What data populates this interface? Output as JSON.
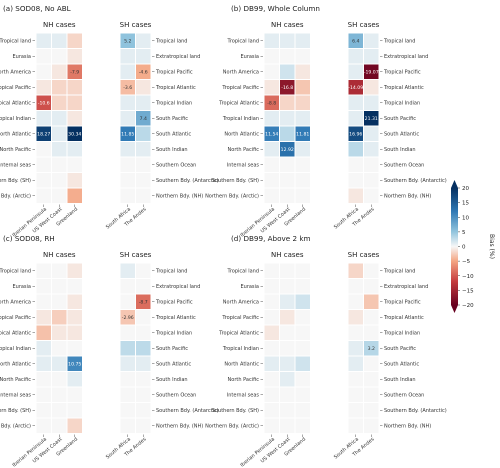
{
  "figure": {
    "colorbar": {
      "label": "Bias (%)",
      "ticks": [
        "20",
        "15",
        "10",
        "5",
        "0",
        "−5",
        "−10",
        "−15",
        "−20"
      ],
      "range": [
        -20,
        20
      ],
      "low_color": "#67001f",
      "mid_color": "#f7f7f7",
      "high_color": "#053061"
    }
  },
  "chart_data": [
    {
      "type": "heatmap",
      "title": "(a) SOD08, No ABL",
      "nh_title": "NH cases",
      "sh_title": "SH cases",
      "rows_left": [
        "Tropical land",
        "Eurasia",
        "North America",
        "Tropical Pacific",
        "Tropical Atlantic",
        "Tropical Indian",
        "North Atlantic",
        "North Pacific",
        "Internal seas",
        "Southern Bdy. (SH)",
        "Northern Bdy. (Arctic)"
      ],
      "rows_right": [
        "Tropical land",
        "Extratropical land",
        "Tropical Pacific",
        "Tropical Atlantic",
        "Tropical Indian",
        "South Pacific",
        "South Atlantic",
        "South Indian",
        "Southern Ocean",
        "Southern Bdy. (Antarctic)",
        "Northern Bdy. (NH)"
      ],
      "nh_cols": [
        "Iberian Peninsula",
        "US West Coast",
        "Greenland"
      ],
      "sh_cols": [
        "South Africa",
        "The Andes"
      ],
      "nh_values": [
        [
          1,
          1,
          -2
        ],
        [
          0,
          0,
          -1
        ],
        [
          0,
          -1,
          -7.9
        ],
        [
          -1,
          -2,
          -2
        ],
        [
          -10.6,
          -2,
          -2
        ],
        [
          1,
          1,
          -1
        ],
        [
          18.27,
          1,
          30.34
        ],
        [
          0,
          1,
          1
        ],
        [
          0,
          0,
          0
        ],
        [
          0,
          0,
          -1
        ],
        [
          0,
          0,
          -4.5
        ]
      ],
      "sh_values": [
        [
          5.2,
          1
        ],
        [
          1,
          1
        ],
        [
          1,
          -4.6
        ],
        [
          -3.6,
          -1
        ],
        [
          1,
          1
        ],
        [
          1,
          7.4
        ],
        [
          11.85,
          3
        ],
        [
          1,
          1
        ],
        [
          0,
          0
        ],
        [
          0,
          0
        ],
        [
          0,
          0
        ]
      ],
      "nh_labels": [
        [
          "",
          "",
          ""
        ],
        [
          "",
          "",
          ""
        ],
        [
          "",
          "",
          "-7.9"
        ],
        [
          "",
          "",
          ""
        ],
        [
          "-10.6",
          "",
          ""
        ],
        [
          "",
          "",
          ""
        ],
        [
          "18.27",
          "",
          "30.34"
        ],
        [
          "",
          "",
          ""
        ],
        [
          "",
          "",
          ""
        ],
        [
          "",
          "",
          ""
        ],
        [
          "",
          "",
          ""
        ]
      ],
      "sh_labels": [
        [
          "5.2",
          ""
        ],
        [
          "",
          ""
        ],
        [
          "",
          "-4.6"
        ],
        [
          "-3.6",
          ""
        ],
        [
          "",
          ""
        ],
        [
          "",
          "7.4"
        ],
        [
          "11.85",
          ""
        ],
        [
          "",
          ""
        ],
        [
          "",
          ""
        ],
        [
          "",
          ""
        ],
        [
          "",
          ""
        ]
      ]
    },
    {
      "type": "heatmap",
      "title": "(b) DB99, Whole Column",
      "nh_title": "NH cases",
      "sh_title": "SH cases",
      "rows_left": [
        "Tropical land",
        "Eurasia",
        "North America",
        "Tropical Pacific",
        "Tropical Atlantic",
        "Tropical Indian",
        "North Atlantic",
        "North Pacific",
        "Internal seas",
        "Southern Bdy. (SH)",
        "Northern Bdy. (Arctic)"
      ],
      "rows_right": [
        "Tropical land",
        "Extratropical land",
        "Tropical Pacific",
        "Tropical Atlantic",
        "Tropical Indian",
        "South Pacific",
        "South Atlantic",
        "South Indian",
        "Southern Ocean",
        "Southern Bdy. (Antarctic)",
        "Northern Bdy. (NH)"
      ],
      "nh_cols": [
        "Iberian Peninsula",
        "US West Coast",
        "Greenland"
      ],
      "sh_cols": [
        "South Africa",
        "The Andes"
      ],
      "nh_values": [
        [
          1,
          1,
          1
        ],
        [
          0,
          0,
          0
        ],
        [
          0,
          2,
          -1
        ],
        [
          -1,
          -16.8,
          -3
        ],
        [
          -8.8,
          -2,
          -2
        ],
        [
          1,
          1,
          1
        ],
        [
          11.54,
          3,
          11.81
        ],
        [
          1,
          12.92,
          1
        ],
        [
          0,
          0,
          0
        ],
        [
          0,
          0,
          0
        ],
        [
          0,
          0,
          0
        ]
      ],
      "sh_values": [
        [
          6.4,
          1
        ],
        [
          1,
          1
        ],
        [
          1,
          -19.07
        ],
        [
          -14.09,
          -1
        ],
        [
          1,
          1
        ],
        [
          1,
          21.31
        ],
        [
          16.96,
          1
        ],
        [
          3,
          1
        ],
        [
          0,
          0
        ],
        [
          0,
          0
        ],
        [
          -1,
          0
        ]
      ],
      "nh_labels": [
        [
          "",
          "",
          ""
        ],
        [
          "",
          "",
          ""
        ],
        [
          "",
          "",
          ""
        ],
        [
          "",
          "-16.8",
          ""
        ],
        [
          "-8.8",
          "",
          ""
        ],
        [
          "",
          "",
          ""
        ],
        [
          "11.54",
          "",
          "11.81"
        ],
        [
          "",
          "12.92",
          ""
        ],
        [
          "",
          "",
          ""
        ],
        [
          "",
          "",
          ""
        ],
        [
          "",
          "",
          ""
        ]
      ],
      "sh_labels": [
        [
          "6.4",
          ""
        ],
        [
          "",
          ""
        ],
        [
          "",
          "-19.07"
        ],
        [
          "-14.09",
          ""
        ],
        [
          "",
          ""
        ],
        [
          "",
          "21.31"
        ],
        [
          "16.96",
          ""
        ],
        [
          "",
          ""
        ],
        [
          "",
          ""
        ],
        [
          "",
          ""
        ],
        [
          "",
          ""
        ]
      ]
    },
    {
      "type": "heatmap",
      "title": "(c) SOD08, RH",
      "nh_title": "NH cases",
      "sh_title": "SH cases",
      "rows_left": [
        "Tropical land",
        "Eurasia",
        "North America",
        "Tropical Pacific",
        "Tropical Atlantic",
        "Tropical Indian",
        "North Atlantic",
        "North Pacific",
        "Internal seas",
        "Southern Bdy. (SH)",
        "Northern Bdy. (Arctic)"
      ],
      "rows_right": [
        "Tropical land",
        "Extratropical land",
        "Tropical Pacific",
        "Tropical Atlantic",
        "Tropical Indian",
        "South Pacific",
        "South Atlantic",
        "South Indian",
        "Southern Ocean",
        "Southern Bdy. (Antarctic)",
        "Northern Bdy. (NH)"
      ],
      "nh_cols": [
        "Iberian Peninsula",
        "US West Coast",
        "Greenland"
      ],
      "sh_cols": [
        "South Africa",
        "The Andes"
      ],
      "nh_values": [
        [
          0,
          0,
          -1
        ],
        [
          0,
          0,
          0
        ],
        [
          0,
          0,
          -1
        ],
        [
          -1,
          -2.5,
          -1
        ],
        [
          -3.3,
          -1,
          -1
        ],
        [
          1,
          0,
          0
        ],
        [
          1,
          1,
          10.75
        ],
        [
          0,
          0,
          1
        ],
        [
          0,
          0,
          0
        ],
        [
          0,
          0,
          0
        ],
        [
          0,
          0,
          -2
        ]
      ],
      "sh_values": [
        [
          1,
          0
        ],
        [
          0,
          0
        ],
        [
          0,
          -8.7
        ],
        [
          -2.96,
          0
        ],
        [
          0,
          0
        ],
        [
          2.8,
          2.9
        ],
        [
          1,
          1
        ],
        [
          0,
          0
        ],
        [
          0,
          0
        ],
        [
          0,
          0
        ],
        [
          0,
          0
        ]
      ],
      "nh_labels": [
        [
          "",
          "",
          ""
        ],
        [
          "",
          "",
          ""
        ],
        [
          "",
          "",
          ""
        ],
        [
          "",
          "",
          ""
        ],
        [
          "",
          "",
          ""
        ],
        [
          "",
          "",
          ""
        ],
        [
          "",
          "",
          "10.75"
        ],
        [
          "",
          "",
          ""
        ],
        [
          "",
          "",
          ""
        ],
        [
          "",
          "",
          ""
        ],
        [
          "",
          "",
          ""
        ]
      ],
      "sh_labels": [
        [
          "",
          ""
        ],
        [
          "",
          ""
        ],
        [
          "",
          "-8.7"
        ],
        [
          "-2.96",
          ""
        ],
        [
          "",
          ""
        ],
        [
          "",
          ""
        ],
        [
          "",
          ""
        ],
        [
          "",
          ""
        ],
        [
          "",
          ""
        ],
        [
          "",
          ""
        ],
        [
          "",
          ""
        ]
      ]
    },
    {
      "type": "heatmap",
      "title": "(d) DB99, Above 2 km",
      "nh_title": "NH cases",
      "sh_title": "SH cases",
      "rows_left": [
        "Tropical land",
        "Eurasia",
        "North America",
        "Tropical Pacific",
        "Tropical Atlantic",
        "Tropical Indian",
        "North Atlantic",
        "North Pacific",
        "Internal seas",
        "Southern Bdy. (SH)",
        "Northern Bdy. (Arctic)"
      ],
      "rows_right": [
        "Tropical land",
        "Extratropical land",
        "Tropical Pacific",
        "Tropical Atlantic",
        "Tropical Indian",
        "South Pacific",
        "South Atlantic",
        "South Indian",
        "Southern Ocean",
        "Southern Bdy. (Antarctic)",
        "Northern Bdy. (NH)"
      ],
      "nh_cols": [
        "Iberian Peninsula",
        "US West Coast",
        "Greenland"
      ],
      "sh_cols": [
        "South Africa",
        "The Andes"
      ],
      "nh_values": [
        [
          0,
          0,
          0
        ],
        [
          0,
          0,
          0
        ],
        [
          0,
          1,
          2
        ],
        [
          0,
          -1,
          0
        ],
        [
          -1,
          0,
          0
        ],
        [
          0,
          0,
          0
        ],
        [
          1,
          1,
          2
        ],
        [
          0,
          1,
          0
        ],
        [
          0,
          0,
          0
        ],
        [
          0,
          0,
          0
        ],
        [
          0,
          0,
          0
        ]
      ],
      "sh_values": [
        [
          -2,
          0
        ],
        [
          0,
          0
        ],
        [
          0,
          -3
        ],
        [
          -1,
          0
        ],
        [
          0,
          0
        ],
        [
          1,
          3.2
        ],
        [
          1,
          0
        ],
        [
          0,
          0
        ],
        [
          0,
          0
        ],
        [
          0,
          0
        ],
        [
          0,
          0
        ]
      ],
      "nh_labels": [
        [
          "",
          "",
          ""
        ],
        [
          "",
          "",
          ""
        ],
        [
          "",
          "",
          ""
        ],
        [
          "",
          "",
          ""
        ],
        [
          "",
          "",
          ""
        ],
        [
          "",
          "",
          ""
        ],
        [
          "",
          "",
          ""
        ],
        [
          "",
          "",
          ""
        ],
        [
          "",
          "",
          ""
        ],
        [
          "",
          "",
          ""
        ],
        [
          "",
          "",
          ""
        ]
      ],
      "sh_labels": [
        [
          "",
          ""
        ],
        [
          "",
          ""
        ],
        [
          "",
          ""
        ],
        [
          "",
          ""
        ],
        [
          "",
          ""
        ],
        [
          "",
          "3.2"
        ],
        [
          "",
          ""
        ],
        [
          "",
          ""
        ],
        [
          "",
          ""
        ],
        [
          "",
          ""
        ],
        [
          "",
          ""
        ]
      ]
    }
  ]
}
